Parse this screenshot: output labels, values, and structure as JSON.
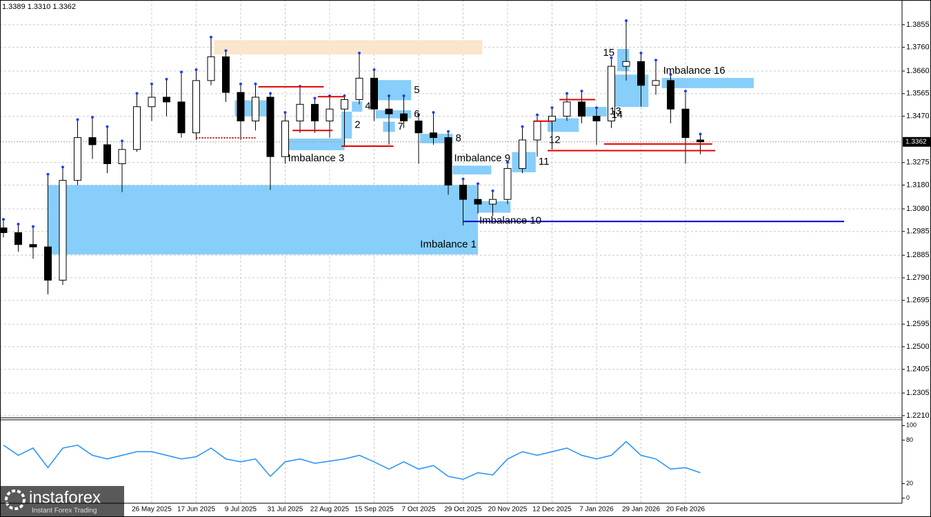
{
  "chart_data": [
    {
      "type": "candlestick",
      "header": "1.3389 1.3310 1.3362",
      "categories": [
        null,
        null,
        null,
        null,
        null,
        null,
        null,
        null,
        null,
        null,
        "26 May 2025",
        null,
        null,
        "17 Jun 2025",
        null,
        null,
        "9 Jul 2025",
        null,
        null,
        "31 Jul 2025",
        null,
        null,
        "22 Aug 2025",
        null,
        null,
        "15 Sep 2025",
        null,
        null,
        "7 Oct 2025",
        null,
        null,
        "29 Oct 2025",
        null,
        null,
        "20 Nov 2025",
        null,
        null,
        "12 Dec 2025",
        null,
        null,
        "7 Jan 2026",
        null,
        null,
        "29 Jan 2026",
        null,
        null,
        "20 Feb 2026",
        null
      ],
      "open": [
        1.3,
        1.298,
        1.293,
        1.292,
        1.278,
        1.32,
        1.338,
        1.335,
        1.327,
        1.333,
        1.351,
        1.355,
        1.353,
        1.34,
        1.362,
        1.372,
        1.357,
        1.345,
        1.355,
        1.33,
        1.345,
        1.352,
        1.345,
        1.35,
        1.354,
        1.363,
        1.35,
        1.348,
        1.345,
        1.34,
        1.338,
        1.318,
        1.312,
        1.31,
        1.312,
        1.325,
        1.337,
        1.345,
        1.347,
        1.353,
        1.347,
        1.345,
        1.368,
        1.37,
        1.36,
        1.362,
        1.35,
        1.337
      ],
      "high": [
        1.303,
        1.301,
        1.3,
        1.322,
        1.325,
        1.345,
        1.346,
        1.342,
        1.336,
        1.356,
        1.36,
        1.362,
        1.365,
        1.366,
        1.3797,
        1.374,
        1.36,
        1.36,
        1.356,
        1.348,
        1.359,
        1.354,
        1.355,
        1.355,
        1.373,
        1.366,
        1.355,
        1.355,
        1.347,
        1.348,
        1.34,
        1.32,
        1.318,
        1.315,
        1.327,
        1.342,
        1.347,
        1.35,
        1.356,
        1.357,
        1.35,
        1.371,
        1.3866,
        1.373,
        1.37,
        1.364,
        1.357,
        1.3389
      ],
      "low": [
        1.296,
        1.29,
        1.287,
        1.272,
        1.276,
        1.318,
        1.329,
        1.323,
        1.315,
        1.332,
        1.345,
        1.347,
        1.338,
        1.337,
        1.36,
        1.353,
        1.337,
        1.341,
        1.316,
        1.327,
        1.34,
        1.34,
        1.338,
        1.334,
        1.352,
        1.345,
        1.335,
        1.342,
        1.327,
        1.335,
        1.314,
        1.301,
        1.306,
        1.305,
        1.31,
        1.323,
        1.33,
        1.333,
        1.345,
        1.344,
        1.335,
        1.342,
        1.362,
        1.351,
        1.356,
        1.344,
        1.327,
        1.331
      ],
      "close": [
        1.298,
        1.293,
        1.292,
        1.278,
        1.32,
        1.338,
        1.335,
        1.327,
        1.333,
        1.351,
        1.355,
        1.353,
        1.34,
        1.362,
        1.372,
        1.357,
        1.345,
        1.355,
        1.33,
        1.345,
        1.352,
        1.345,
        1.35,
        1.354,
        1.363,
        1.35,
        1.348,
        1.345,
        1.34,
        1.338,
        1.318,
        1.312,
        1.31,
        1.312,
        1.325,
        1.337,
        1.345,
        1.347,
        1.353,
        1.347,
        1.345,
        1.368,
        1.37,
        1.36,
        1.362,
        1.35,
        1.338,
        1.3362
      ],
      "ylim": [
        1.2204,
        1.3959
      ],
      "yticks": [
        {
          "value": 1.3855,
          "label": "1.3855"
        },
        {
          "value": 1.376,
          "label": "1.3760"
        },
        {
          "value": 1.366,
          "label": "1.3660"
        },
        {
          "value": 1.3565,
          "label": "1.3565"
        },
        {
          "value": 1.347,
          "label": "1.3470"
        },
        {
          "value": 1.3275,
          "label": "1.3275"
        },
        {
          "value": 1.318,
          "label": "1.3180"
        },
        {
          "value": 1.308,
          "label": "1.3080"
        },
        {
          "value": 1.2985,
          "label": "1.2985"
        },
        {
          "value": 1.2885,
          "label": "1.2885"
        },
        {
          "value": 1.279,
          "label": "1.2790"
        },
        {
          "value": 1.2695,
          "label": "1.2695"
        },
        {
          "value": 1.2595,
          "label": "1.2595"
        },
        {
          "value": 1.25,
          "label": "1.2500"
        },
        {
          "value": 1.2405,
          "label": "1.2405"
        },
        {
          "value": 1.2305,
          "label": "1.2305"
        },
        {
          "value": 1.221,
          "label": "1.2210"
        }
      ],
      "grid": true,
      "last_price": {
        "value": 1.3362,
        "label": "1.3362"
      },
      "zones": [
        {
          "label": "Imbalance 1",
          "from": 3.0,
          "to": 32.0,
          "top": 1.318,
          "bottom": 1.2888,
          "color": "#87cefa",
          "label_pos": "inside"
        },
        {
          "from": 14.2,
          "to": 32.3,
          "top": 1.379,
          "bottom": 1.373,
          "color": "#fae6cc"
        },
        {
          "from": 15.6,
          "to": 18.2,
          "top": 1.3537,
          "bottom": 1.3469,
          "color": "#87cefa"
        },
        {
          "label": "2",
          "from": 22.8,
          "to": 23.5,
          "top": 1.3489,
          "bottom": 1.3376,
          "color": "#87cefa",
          "label_pos": "right"
        },
        {
          "label": "Imbalance 3",
          "from": 19.1,
          "to": 23.0,
          "top": 1.3376,
          "bottom": 1.3327,
          "color": "#87cefa",
          "label_pos": "below"
        },
        {
          "label": "4",
          "from": 23.5,
          "to": 24.2,
          "top": 1.3532,
          "bottom": 1.3489,
          "color": "#87cefa",
          "label_pos": "right"
        },
        {
          "label": "5",
          "from": 24.8,
          "to": 27.5,
          "top": 1.3622,
          "bottom": 1.3537,
          "color": "#87cefa",
          "label_pos": "right"
        },
        {
          "label": "6",
          "from": 25.1,
          "to": 27.5,
          "top": 1.3495,
          "bottom": 1.3461,
          "color": "#87cefa",
          "label_pos": "right"
        },
        {
          "label": "7",
          "from": 25.6,
          "to": 26.4,
          "top": 1.3447,
          "bottom": 1.3404,
          "color": "#87cefa",
          "label_pos": "right"
        },
        {
          "label": "8",
          "from": 28.1,
          "to": 30.3,
          "top": 1.3396,
          "bottom": 1.3356,
          "color": "#87cefa",
          "label_pos": "right"
        },
        {
          "label": "Imbalance 9",
          "from": 30.3,
          "to": 32.9,
          "top": 1.3262,
          "bottom": 1.3225,
          "color": "#87cefa",
          "label_pos": "above"
        },
        {
          "label": "Imbalance 10",
          "from": 32.0,
          "to": 34.2,
          "top": 1.3112,
          "bottom": 1.3064,
          "color": "#87cefa",
          "label_pos": "below"
        },
        {
          "label": "11",
          "from": 34.3,
          "to": 35.9,
          "top": 1.3319,
          "bottom": 1.3234,
          "color": "#87cefa",
          "label_pos": "right"
        },
        {
          "label": "12",
          "from": 36.7,
          "to": 38.8,
          "top": 1.3461,
          "bottom": 1.3404,
          "color": "#87cefa",
          "label_pos": "below"
        },
        {
          "label": "13",
          "from": 39.1,
          "to": 40.7,
          "top": 1.3509,
          "bottom": 1.3469,
          "color": "#87cefa",
          "label_pos": "right"
        },
        {
          "label": "14",
          "from": 40.9,
          "to": 43.5,
          "top": 1.3645,
          "bottom": 1.3509,
          "color": "#87cefa",
          "label_pos": "below"
        },
        {
          "label": "15",
          "from": 41.4,
          "to": 42.2,
          "top": 1.3753,
          "bottom": 1.3659,
          "color": "#87cefa",
          "label_pos": "left"
        },
        {
          "label": "Imbalance 16",
          "from": 44.4,
          "to": 50.6,
          "top": 1.3631,
          "bottom": 1.3588,
          "color": "#87cefa",
          "label_pos": "above"
        }
      ],
      "levels": [
        {
          "from": 13.0,
          "to": 17.1,
          "value": 1.3379,
          "color": "#e00000",
          "style": "dotted"
        },
        {
          "from": 17.2,
          "to": 21.6,
          "value": 1.3594,
          "color": "#e00000",
          "style": "solid"
        },
        {
          "from": 19.5,
          "to": 22.2,
          "value": 1.341,
          "color": "#e00000",
          "style": "solid"
        },
        {
          "from": 21.2,
          "to": 23.0,
          "value": 1.3552,
          "color": "#e00000",
          "style": "solid"
        },
        {
          "from": 22.8,
          "to": 26.3,
          "value": 1.3344,
          "color": "#e00000",
          "style": "solid"
        },
        {
          "from": 35.8,
          "to": 37.0,
          "value": 1.3449,
          "color": "#e00000",
          "style": "solid"
        },
        {
          "from": 37.5,
          "to": 39.9,
          "value": 1.354,
          "color": "#e00000",
          "style": "solid"
        },
        {
          "from": 40.5,
          "to": 47.8,
          "value": 1.3353,
          "color": "#e00000",
          "style": "solid"
        },
        {
          "from": 36.7,
          "to": 48.0,
          "value": 1.3325,
          "color": "#e00000",
          "style": "solid"
        },
        {
          "from": 31.0,
          "to": 56.7,
          "value": 1.3027,
          "color": "#0000c0",
          "style": "solid"
        }
      ],
      "watermark": {
        "brand": "instaforex",
        "tagline": "Instant Forex Trading"
      }
    },
    {
      "type": "line",
      "values": [
        73,
        59,
        69,
        42,
        69,
        73,
        59,
        54,
        59,
        64,
        64,
        59,
        54,
        57,
        69,
        54,
        50,
        54,
        30,
        50,
        54,
        48,
        51,
        54,
        59,
        50,
        40,
        50,
        40,
        45,
        30,
        26,
        35,
        32,
        54,
        64,
        59,
        64,
        69,
        59,
        54,
        59,
        78,
        59,
        54,
        40,
        42,
        35
      ],
      "color": "#1e90ff",
      "ylim": [
        -7,
        107
      ],
      "yticks": [
        100,
        80,
        20,
        0
      ]
    }
  ]
}
